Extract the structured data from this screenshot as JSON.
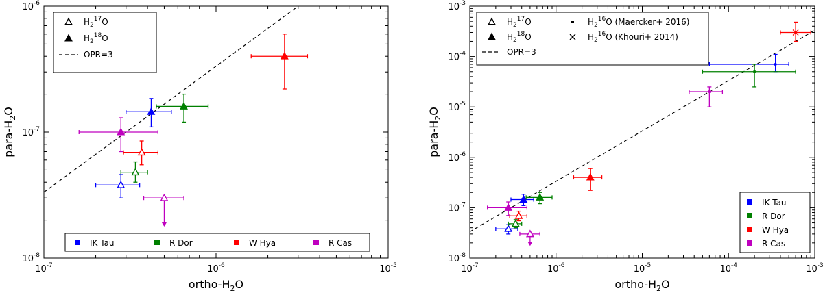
{
  "chart_data": [
    {
      "type": "scatter",
      "title": "",
      "xlabel": "ortho-H2O",
      "ylabel": "para-H2O",
      "xscale": "log",
      "yscale": "log",
      "xlim": [
        1e-07,
        1e-05
      ],
      "ylim": [
        1e-08,
        1e-06
      ],
      "x_ticks": [
        {
          "value": 1e-07,
          "mant": "10",
          "exp": "-7"
        },
        {
          "value": 1e-06,
          "mant": "10",
          "exp": "-6"
        },
        {
          "value": 1e-05,
          "mant": "10",
          "exp": "-5"
        }
      ],
      "y_ticks": [
        {
          "value": 1e-08,
          "mant": "10",
          "exp": "-8"
        },
        {
          "value": 1e-07,
          "mant": "10",
          "exp": "-7"
        },
        {
          "value": 1e-06,
          "mant": "10",
          "exp": "-6"
        }
      ],
      "opr_line": {
        "label": "OPR=3",
        "ratio": 3
      },
      "marker_legend": {
        "position": "top-left",
        "items": [
          {
            "marker": "open-triangle",
            "label": "H2 17O"
          },
          {
            "marker": "filled-triangle",
            "label": "H2 18O"
          },
          {
            "marker": "dashed-line",
            "label": "OPR=3"
          }
        ]
      },
      "color_legend": {
        "position": "bottom",
        "layout": "row",
        "items": [
          {
            "label": "IK Tau",
            "color": "#0000ff"
          },
          {
            "label": "R Dor",
            "color": "#008000"
          },
          {
            "label": "W Hya",
            "color": "#ff0000"
          },
          {
            "label": "R Cas",
            "color": "#bf00bf"
          }
        ]
      },
      "series": [
        {
          "name": "IK Tau H2 17O",
          "marker": "open-triangle",
          "color": "#0000ff",
          "x": 2.8e-07,
          "y": 3.8e-08,
          "xerr": [
            2e-07,
            3.6e-07
          ],
          "yerr": [
            3e-08,
            4.6e-08
          ]
        },
        {
          "name": "IK Tau H2 18O",
          "marker": "filled-triangle",
          "color": "#0000ff",
          "x": 4.2e-07,
          "y": 1.45e-07,
          "xerr": [
            3e-07,
            5.5e-07
          ],
          "yerr": [
            1.1e-07,
            1.85e-07
          ]
        },
        {
          "name": "R Dor H2 17O",
          "marker": "open-triangle",
          "color": "#008000",
          "x": 3.4e-07,
          "y": 4.8e-08,
          "xerr": [
            2.8e-07,
            4e-07
          ],
          "yerr": [
            4e-08,
            5.8e-08
          ]
        },
        {
          "name": "R Dor H2 18O",
          "marker": "filled-triangle",
          "color": "#008000",
          "x": 6.5e-07,
          "y": 1.6e-07,
          "xerr": [
            4.5e-07,
            9e-07
          ],
          "yerr": [
            1.2e-07,
            2e-07
          ]
        },
        {
          "name": "W Hya H2 17O",
          "marker": "open-triangle",
          "color": "#ff0000",
          "x": 3.7e-07,
          "y": 6.9e-08,
          "xerr": [
            2.9e-07,
            4.6e-07
          ],
          "yerr": [
            5.5e-08,
            8.5e-08
          ]
        },
        {
          "name": "W Hya H2 18O",
          "marker": "filled-triangle",
          "color": "#ff0000",
          "x": 2.5e-06,
          "y": 4e-07,
          "xerr": [
            1.6e-06,
            3.4e-06
          ],
          "yerr": [
            2.2e-07,
            6e-07
          ]
        },
        {
          "name": "R Cas H2 17O",
          "marker": "open-triangle",
          "color": "#bf00bf",
          "x": 5e-07,
          "y": 3e-08,
          "xerr": [
            3.8e-07,
            6.5e-07
          ],
          "yerr": [
            1.8e-08,
            3e-08
          ],
          "upper_limit": true
        },
        {
          "name": "R Cas H2 18O",
          "marker": "filled-triangle",
          "color": "#bf00bf",
          "x": 2.8e-07,
          "y": 1e-07,
          "xerr": [
            1.6e-07,
            4.6e-07
          ],
          "yerr": [
            7e-08,
            1.3e-07
          ]
        }
      ]
    },
    {
      "type": "scatter",
      "title": "",
      "xlabel": "ortho-H2O",
      "ylabel": "para-H2O",
      "xscale": "log",
      "yscale": "log",
      "xlim": [
        1e-07,
        0.001
      ],
      "ylim": [
        1e-08,
        0.001
      ],
      "x_ticks": [
        {
          "value": 1e-07,
          "mant": "10",
          "exp": "-7"
        },
        {
          "value": 1e-06,
          "mant": "10",
          "exp": "-6"
        },
        {
          "value": 1e-05,
          "mant": "10",
          "exp": "-5"
        },
        {
          "value": 0.0001,
          "mant": "10",
          "exp": "-4"
        },
        {
          "value": 0.001,
          "mant": "10",
          "exp": "-3"
        }
      ],
      "y_ticks": [
        {
          "value": 1e-08,
          "mant": "10",
          "exp": "-8"
        },
        {
          "value": 1e-07,
          "mant": "10",
          "exp": "-7"
        },
        {
          "value": 1e-06,
          "mant": "10",
          "exp": "-6"
        },
        {
          "value": 1e-05,
          "mant": "10",
          "exp": "-5"
        },
        {
          "value": 0.0001,
          "mant": "10",
          "exp": "-4"
        },
        {
          "value": 0.001,
          "mant": "10",
          "exp": "-3"
        }
      ],
      "opr_line": {
        "label": "OPR=3",
        "ratio": 3
      },
      "marker_legend": {
        "position": "top-left",
        "columns": 2,
        "items": [
          {
            "marker": "open-triangle",
            "label": "H2 17O"
          },
          {
            "marker": "filled-triangle",
            "label": "H2 18O"
          },
          {
            "marker": "dashed-line",
            "label": "OPR=3"
          },
          {
            "marker": "dot",
            "label": "H2 16O (Maercker+ 2016)"
          },
          {
            "marker": "cross",
            "label": "H2 16O (Khouri+ 2014)"
          }
        ]
      },
      "color_legend": {
        "position": "bottom-right",
        "layout": "column",
        "items": [
          {
            "label": "IK Tau",
            "color": "#0000ff"
          },
          {
            "label": "R Dor",
            "color": "#008000"
          },
          {
            "label": "W Hya",
            "color": "#ff0000"
          },
          {
            "label": "R Cas",
            "color": "#bf00bf"
          }
        ]
      },
      "series": [
        {
          "name": "IK Tau H2 17O",
          "marker": "open-triangle",
          "color": "#0000ff",
          "x": 2.8e-07,
          "y": 3.8e-08,
          "xerr": [
            2e-07,
            3.6e-07
          ],
          "yerr": [
            3e-08,
            4.6e-08
          ]
        },
        {
          "name": "IK Tau H2 18O",
          "marker": "filled-triangle",
          "color": "#0000ff",
          "x": 4.2e-07,
          "y": 1.45e-07,
          "xerr": [
            3e-07,
            5.5e-07
          ],
          "yerr": [
            1.1e-07,
            1.85e-07
          ]
        },
        {
          "name": "R Dor H2 17O",
          "marker": "open-triangle",
          "color": "#008000",
          "x": 3.4e-07,
          "y": 4.8e-08,
          "xerr": [
            2.8e-07,
            4e-07
          ],
          "yerr": [
            4e-08,
            5.8e-08
          ]
        },
        {
          "name": "R Dor H2 18O",
          "marker": "filled-triangle",
          "color": "#008000",
          "x": 6.5e-07,
          "y": 1.6e-07,
          "xerr": [
            4.5e-07,
            9e-07
          ],
          "yerr": [
            1.2e-07,
            2e-07
          ]
        },
        {
          "name": "W Hya H2 17O",
          "marker": "open-triangle",
          "color": "#ff0000",
          "x": 3.7e-07,
          "y": 6.9e-08,
          "xerr": [
            2.9e-07,
            4.6e-07
          ],
          "yerr": [
            5.5e-08,
            8.5e-08
          ]
        },
        {
          "name": "W Hya H2 18O",
          "marker": "filled-triangle",
          "color": "#ff0000",
          "x": 2.5e-06,
          "y": 4e-07,
          "xerr": [
            1.6e-06,
            3.4e-06
          ],
          "yerr": [
            2.2e-07,
            6e-07
          ]
        },
        {
          "name": "R Cas H2 17O",
          "marker": "open-triangle",
          "color": "#bf00bf",
          "x": 5e-07,
          "y": 3e-08,
          "xerr": [
            3.8e-07,
            6.5e-07
          ],
          "yerr": [
            1.8e-08,
            3e-08
          ],
          "upper_limit": true
        },
        {
          "name": "R Cas H2 18O",
          "marker": "filled-triangle",
          "color": "#bf00bf",
          "x": 2.8e-07,
          "y": 1e-07,
          "xerr": [
            1.6e-07,
            4.6e-07
          ],
          "yerr": [
            7e-08,
            1.3e-07
          ]
        },
        {
          "name": "IK Tau H2 16O (Maercker+ 2016)",
          "marker": "dot",
          "color": "#0000ff",
          "x": 0.00035,
          "y": 7e-05,
          "xerr": [
            6e-05,
            0.0005
          ],
          "yerr": [
            5e-05,
            0.00011
          ]
        },
        {
          "name": "R Dor H2 16O (Maercker+ 2016)",
          "marker": "dot",
          "color": "#008000",
          "x": 0.0002,
          "y": 5e-05,
          "xerr": [
            5e-05,
            0.0006
          ],
          "yerr": [
            2.5e-05,
            7e-05
          ]
        },
        {
          "name": "W Hya H2 16O (Khouri+ 2014)",
          "marker": "cross",
          "color": "#ff0000",
          "x": 0.0006,
          "y": 0.0003,
          "xerr": [
            0.0004,
            0.0009
          ],
          "yerr": [
            0.0002,
            0.00048
          ]
        },
        {
          "name": "R Cas H2 16O (Maercker+ 2016)",
          "marker": "dot",
          "color": "#bf00bf",
          "x": 6e-05,
          "y": 2e-05,
          "xerr": [
            3.5e-05,
            8.5e-05
          ],
          "yerr": [
            1e-05,
            2.5e-05
          ]
        }
      ]
    }
  ]
}
